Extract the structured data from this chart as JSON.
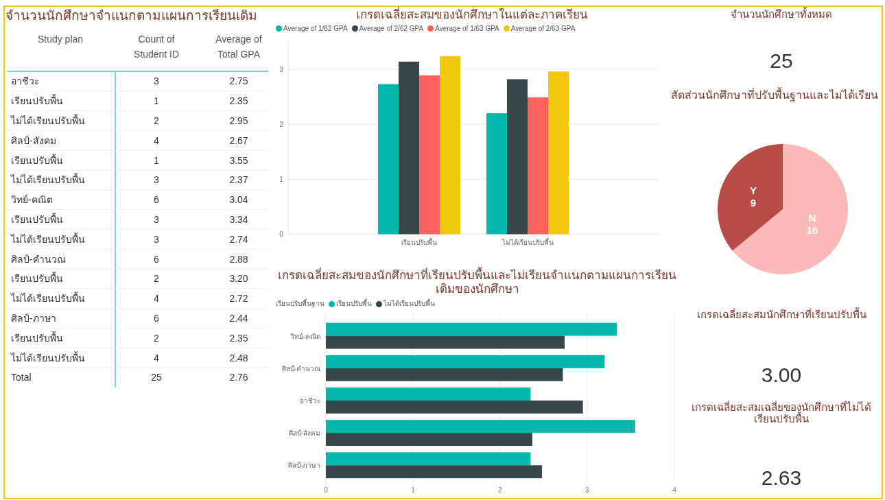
{
  "chart_data": [
    {
      "type": "other",
      "title": "จำนวนนักศึกษาจำแนกตามแผนการเรียนเดิม",
      "xlabel": "Study plan",
      "data_labels": true,
      "categories": [
        "อาชีวะ",
        "เรียนปรับพื้น",
        "ไม่ได้เรียนปรับพื้น",
        "ศิลป์-สังคม",
        "เรียนปรับพื้น",
        "ไม่ได้เรียนปรับพื้น",
        "วิทย์-คณิต",
        "เรียนปรับพื้น",
        "ไม่ได้เรียนปรับพื้น",
        "ศิลป์-คำนวณ",
        "เรียนปรับพื้น",
        "ไม่ได้เรียนปรับพื้น",
        "ศิลป์-ภาษา",
        "เรียนปรับพื้น",
        "ไม่ได้เรียนปรับพื้น",
        "Total"
      ],
      "series": [
        {
          "name": "Count of Student ID",
          "values": [
            3,
            1,
            2,
            4,
            1,
            3,
            6,
            3,
            3,
            6,
            2,
            4,
            6,
            2,
            4,
            25
          ]
        },
        {
          "name": "Average of Total GPA",
          "values": [
            2.75,
            2.35,
            2.95,
            2.67,
            3.55,
            2.37,
            3.04,
            3.34,
            2.74,
            2.88,
            3.2,
            2.72,
            2.44,
            2.35,
            2.48,
            2.76
          ],
          "value_labels": [
            "2.75",
            "2.35",
            "2.95",
            "2.67",
            "3.55",
            "2.37",
            "3.04",
            "3.34",
            "2.74",
            "2.88",
            "3.20",
            "2.72",
            "2.44",
            "2.35",
            "2.48",
            "2.76"
          ]
        }
      ]
    },
    {
      "type": "bar",
      "title": "เกรดเฉลี่ยสะสมของนักศึกษาในแต่ละภาคเรียน",
      "categories": [
        "เรียนปรับพื้น",
        "ไม่ได้เรียนปรับพื้น"
      ],
      "series": [
        {
          "name": "Average of 1/62 GPA",
          "color": "#01b8aa",
          "values": [
            2.73,
            2.2
          ]
        },
        {
          "name": "Average of 2/62 GPA",
          "color": "#374649",
          "values": [
            3.14,
            2.82
          ]
        },
        {
          "name": "Average of 1/63 GPA",
          "color": "#fd625e",
          "values": [
            2.89,
            2.49
          ]
        },
        {
          "name": "Average of 2/63 GPA",
          "color": "#f2c80f",
          "values": [
            3.24,
            2.96
          ]
        }
      ],
      "ylim": [
        0,
        3.5
      ],
      "yticks": [
        0,
        1,
        2,
        3
      ],
      "grid": "y",
      "legend": "top left"
    },
    {
      "type": "bar",
      "orientation": "horizontal",
      "title": "เกรดเฉลี่ยสะสมของนักศึกษาที่เรียนปรับพื้นและไม่เรียนจำแนกตามแผนการเรียนเดิมของนักศึกษา",
      "legend_title": "เรียนปรับพื้นฐาน",
      "categories": [
        "วิทย์-คณิต",
        "ศิลป์-คำนวณ",
        "อาชีวะ",
        "ศิลป์-สังคม",
        "ศิลป์-ภาษา"
      ],
      "series": [
        {
          "name": "เรียนปรับพื้น",
          "color": "#01b8aa",
          "values": [
            3.34,
            3.2,
            2.35,
            3.55,
            2.35
          ]
        },
        {
          "name": "ไม่ได้เรียนปรับพื้น",
          "color": "#374649",
          "values": [
            2.74,
            2.72,
            2.95,
            2.37,
            2.48
          ]
        }
      ],
      "xlim": [
        0,
        4
      ],
      "xticks": [
        0,
        1,
        2,
        3,
        4
      ],
      "grid": "x",
      "legend": "top left"
    },
    {
      "type": "other",
      "title": "จำนวนนักศึกษาทั้งหมด",
      "values": [
        25
      ],
      "data_labels": true
    },
    {
      "type": "pie",
      "title": "สัดส่วนนักศึกษาที่ปรับพื้นฐานและไม่ได้เรียน",
      "categories": [
        "N",
        "Y"
      ],
      "values": [
        16,
        9
      ],
      "colors": [
        "#fbb9b9",
        "#b84a47"
      ],
      "data_labels": true
    },
    {
      "type": "other",
      "title": "เกรดเฉลี่ยสะสมนักศึกษาที่เรียนปรับพื้น",
      "values": [
        3.0
      ],
      "value_labels": [
        "3.00"
      ]
    },
    {
      "type": "other",
      "title": "เกรดเฉลี่ยสะสมเฉลี่ยของนักศึกษาที่ไม่ได้เรียนปรับพื้น",
      "values": [
        2.63
      ],
      "value_labels": [
        "2.63"
      ]
    }
  ]
}
